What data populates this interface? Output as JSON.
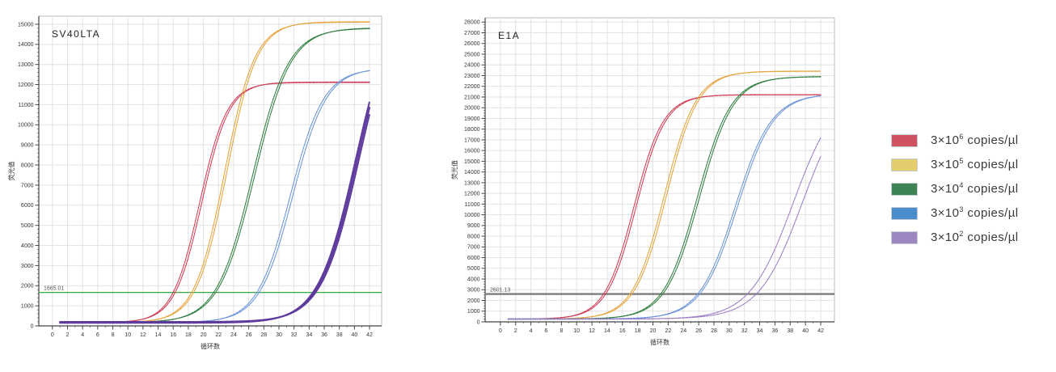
{
  "chart_data": {
    "type": "line",
    "description": "Real-time PCR amplification curves for two targets with 10-fold serial dilutions",
    "legend": {
      "position": "right",
      "items": [
        {
          "label": "3×10^6 copies/µl",
          "base": "3×10",
          "exponent": "6",
          "unit": " copies/µl",
          "swatch_color": "#cf5263"
        },
        {
          "label": "3×10^5 copies/µl",
          "base": "3×10",
          "exponent": "5",
          "unit": " copies/µl",
          "swatch_color": "#e2cc6c"
        },
        {
          "label": "3×10^4 copies/µl",
          "base": "3×10",
          "exponent": "4",
          "unit": " copies/µl",
          "swatch_color": "#3d8355"
        },
        {
          "label": "3×10^3 copies/µl",
          "base": "3×10",
          "exponent": "3",
          "unit": " copies/µl",
          "swatch_color": "#4a8dcd"
        },
        {
          "label": "3×10^2 copies/µl",
          "base": "3×10",
          "exponent": "2",
          "unit": " copies/µl",
          "swatch_color": "#9d85c0"
        }
      ]
    },
    "charts": [
      {
        "title": "SV40LTA",
        "xlabel": "循环数",
        "ylabel": "荧光值",
        "xlim": [
          -1.8,
          43.6
        ],
        "ylim": [
          0,
          15400
        ],
        "x_ticks": {
          "min": 0,
          "max": 42,
          "step": 2,
          "minor_step": 1
        },
        "y_ticks": {
          "min": 0,
          "max": 15000,
          "step": 1000,
          "minor_step": 200
        },
        "grid": true,
        "threshold": {
          "value": 1665.01,
          "label": "1665.01",
          "color": "#3aa83c",
          "line_width": 1.2
        },
        "series": [
          {
            "name": "3×10^6 copies/µl",
            "color": "#d13a52",
            "baseline": 150,
            "plateau": 12100,
            "midpoint_cycle": 19.5,
            "steepness": 0.55,
            "ct_approx": 16.0,
            "value_at_cycle42": 12100,
            "rep_offsets": [
              0,
              0.3
            ],
            "width": 1.1
          },
          {
            "name": "3×10^5 copies/µl",
            "color": "#e6a33b",
            "baseline": 150,
            "plateau": 15100,
            "midpoint_cycle": 22.8,
            "steepness": 0.5,
            "ct_approx": 18.4,
            "value_at_cycle42": 15080,
            "rep_offsets": [
              0,
              0.3
            ],
            "width": 1.1
          },
          {
            "name": "3×10^4 copies/µl",
            "color": "#2e7d3e",
            "baseline": 150,
            "plateau": 14800,
            "midpoint_cycle": 26.5,
            "steepness": 0.42,
            "ct_approx": 21.5,
            "value_at_cycle42": 14770,
            "rep_offsets": [
              0,
              0.3
            ],
            "width": 1.1
          },
          {
            "name": "3×10^3 copies/µl",
            "color": "#6a93d8",
            "baseline": 150,
            "plateau": 12800,
            "midpoint_cycle": 31.5,
            "steepness": 0.45,
            "ct_approx": 27.1,
            "value_at_cycle42": 12690,
            "rep_offsets": [
              0,
              0.35
            ],
            "width": 1.1
          },
          {
            "name": "3×10^2 copies/µl",
            "color": "#5e3a9c",
            "baseline": 150,
            "plateau": 16500,
            "midpoint_cycle": 40.2,
            "steepness": 0.4,
            "ct_approx": 34.5,
            "value_at_cycle42": 11100,
            "rep_offsets": [
              0,
              0.22,
              0.45
            ],
            "width": 2.0
          }
        ]
      },
      {
        "title": "E1A",
        "xlabel": "循环数",
        "ylabel": "荧光值",
        "xlim": [
          -2.0,
          43.8
        ],
        "ylim": [
          0,
          28400
        ],
        "x_ticks": {
          "min": 0,
          "max": 42,
          "step": 2,
          "minor_step": 1
        },
        "y_ticks": {
          "min": 0,
          "max": 28000,
          "step": 1000,
          "minor_step": 250
        },
        "grid": true,
        "threshold": {
          "value": 2601.13,
          "label": "2601.13",
          "color": "#7d7d7d",
          "line_width": 2.4
        },
        "series": [
          {
            "name": "3×10^6 copies/µl",
            "color": "#d13a52",
            "baseline": 250,
            "plateau": 21200,
            "midpoint_cycle": 17.5,
            "steepness": 0.52,
            "ct_approx": 13.5,
            "value_at_cycle42": 21200,
            "rep_offsets": [
              0,
              0.3
            ],
            "width": 1.1
          },
          {
            "name": "3×10^5 copies/µl",
            "color": "#e6a33b",
            "baseline": 250,
            "plateau": 23400,
            "midpoint_cycle": 21.5,
            "steepness": 0.48,
            "ct_approx": 17.0,
            "value_at_cycle42": 23380,
            "rep_offsets": [
              0,
              0.3
            ],
            "width": 1.1
          },
          {
            "name": "3×10^4 copies/µl",
            "color": "#2e7d3e",
            "baseline": 250,
            "plateau": 22900,
            "midpoint_cycle": 25.8,
            "steepness": 0.45,
            "ct_approx": 21.0,
            "value_at_cycle42": 22870,
            "rep_offsets": [
              0,
              0.3
            ],
            "width": 1.1
          },
          {
            "name": "3×10^3 copies/µl",
            "color": "#6a93d8",
            "baseline": 250,
            "plateau": 21300,
            "midpoint_cycle": 30.8,
            "steepness": 0.42,
            "ct_approx": 25.9,
            "value_at_cycle42": 21090,
            "rep_offsets": [
              0,
              0.3
            ],
            "width": 1.1
          },
          {
            "name": "3×10^2 copies/µl",
            "color": "#9b7ec4",
            "baseline": 250,
            "plateau": 22000,
            "midpoint_cycle": 38.4,
            "steepness": 0.35,
            "ct_approx": 32.4,
            "value_at_cycle42": 17100,
            "rep_offsets": [
              0,
              1.2
            ],
            "width": 1.1
          }
        ]
      }
    ]
  },
  "style": {
    "grid_color": "#e2e2e2",
    "axis_color": "#444444",
    "box_color": "#bbbbbb",
    "tick_label_color": "#333333",
    "title_color": "#222222",
    "threshold_label_color": "#555555",
    "curve_dash": "3.2 1.1"
  }
}
